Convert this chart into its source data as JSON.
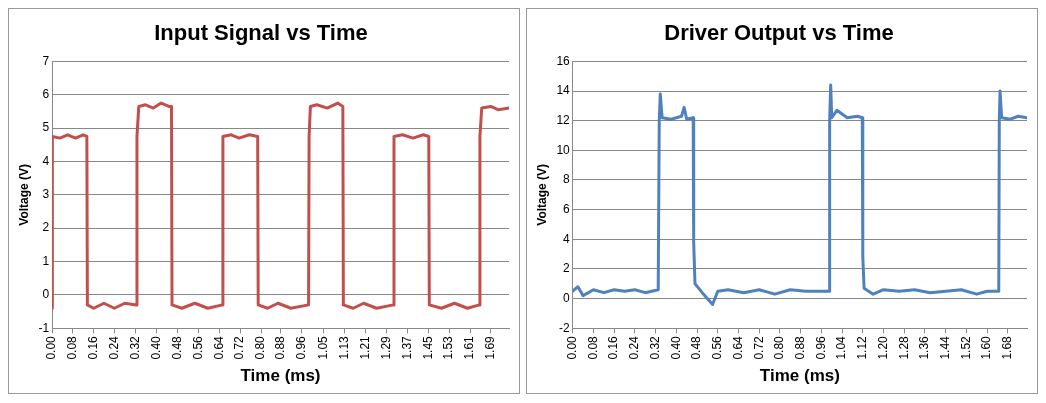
{
  "chart_data": [
    {
      "type": "line",
      "title": "Input Signal vs Time",
      "xlabel": "Time (ms)",
      "ylabel": "Voltage (V)",
      "grid": "y",
      "legend": false,
      "marker": "none",
      "line_style": "solid",
      "xlim": [
        0,
        1.76
      ],
      "ylim": [
        -1,
        7
      ],
      "yticks": [
        -1,
        0,
        1,
        2,
        3,
        4,
        5,
        6,
        7
      ],
      "xticks": [
        {
          "value": 0,
          "label": "0.00"
        },
        {
          "value": 0.0805,
          "label": "0.08"
        },
        {
          "value": 0.161,
          "label": "0.16"
        },
        {
          "value": 0.2415,
          "label": "0.24"
        },
        {
          "value": 0.322,
          "label": "0.32"
        },
        {
          "value": 0.4025,
          "label": "0.40"
        },
        {
          "value": 0.483,
          "label": "0.48"
        },
        {
          "value": 0.5635,
          "label": "0.56"
        },
        {
          "value": 0.644,
          "label": "0.64"
        },
        {
          "value": 0.7245,
          "label": "0.72"
        },
        {
          "value": 0.805,
          "label": "0.80"
        },
        {
          "value": 0.88,
          "label": "0.88"
        },
        {
          "value": 0.96,
          "label": "0.96"
        },
        {
          "value": 1.0465,
          "label": "1.05"
        },
        {
          "value": 1.127,
          "label": "1.13"
        },
        {
          "value": 1.2075,
          "label": "1.21"
        },
        {
          "value": 1.288,
          "label": "1.29"
        },
        {
          "value": 1.3685,
          "label": "1.37"
        },
        {
          "value": 1.449,
          "label": "1.45"
        },
        {
          "value": 1.5295,
          "label": "1.53"
        },
        {
          "value": 1.61,
          "label": "1.61"
        },
        {
          "value": 1.6905,
          "label": "1.69"
        }
      ],
      "series": [
        {
          "color": "#c0504d",
          "x": [
            0,
            0.001,
            0.03,
            0.06,
            0.09,
            0.12,
            0.134,
            0.136,
            0.16,
            0.2,
            0.24,
            0.28,
            0.325,
            0.327,
            0.334,
            0.36,
            0.39,
            0.42,
            0.45,
            0.46,
            0.462,
            0.5,
            0.55,
            0.6,
            0.656,
            0.658,
            0.69,
            0.72,
            0.76,
            0.792,
            0.794,
            0.83,
            0.87,
            0.92,
            0.988,
            0.99,
            0.995,
            1.02,
            1.06,
            1.1,
            1.12,
            1.122,
            1.16,
            1.2,
            1.25,
            1.315,
            1.317,
            1.35,
            1.39,
            1.43,
            1.451,
            1.453,
            1.5,
            1.55,
            1.6,
            1.646,
            1.648,
            1.655,
            1.69,
            1.72,
            1.76
          ],
          "values": [
            -0.4,
            4.75,
            4.7,
            4.8,
            4.7,
            4.8,
            4.75,
            -0.3,
            -0.4,
            -0.25,
            -0.4,
            -0.25,
            -0.3,
            4.75,
            5.65,
            5.7,
            5.6,
            5.75,
            5.65,
            5.65,
            -0.3,
            -0.4,
            -0.25,
            -0.4,
            -0.3,
            4.75,
            4.8,
            4.7,
            4.8,
            4.75,
            -0.3,
            -0.4,
            -0.25,
            -0.4,
            -0.3,
            4.75,
            5.65,
            5.7,
            5.6,
            5.75,
            5.65,
            -0.3,
            -0.4,
            -0.25,
            -0.4,
            -0.3,
            4.75,
            4.8,
            4.7,
            4.8,
            4.75,
            -0.3,
            -0.4,
            -0.25,
            -0.4,
            -0.3,
            4.75,
            5.6,
            5.65,
            5.55,
            5.6
          ]
        }
      ]
    },
    {
      "type": "line",
      "title": "Driver Output vs Time",
      "xlabel": "Time (ms)",
      "ylabel": "Voltage (V)",
      "grid": "y",
      "legend": false,
      "marker": "none",
      "line_style": "solid",
      "xlim": [
        0,
        1.754
      ],
      "ylim": [
        -2,
        16
      ],
      "yticks": [
        -2,
        0,
        2,
        4,
        6,
        8,
        10,
        12,
        14,
        16
      ],
      "xticks": [
        {
          "value": 0,
          "label": "0.00"
        },
        {
          "value": 0.08,
          "label": "0.08"
        },
        {
          "value": 0.16,
          "label": "0.16"
        },
        {
          "value": 0.24,
          "label": "0.24"
        },
        {
          "value": 0.32,
          "label": "0.32"
        },
        {
          "value": 0.4,
          "label": "0.40"
        },
        {
          "value": 0.48,
          "label": "0.48"
        },
        {
          "value": 0.56,
          "label": "0.56"
        },
        {
          "value": 0.64,
          "label": "0.64"
        },
        {
          "value": 0.72,
          "label": "0.72"
        },
        {
          "value": 0.8,
          "label": "0.80"
        },
        {
          "value": 0.88,
          "label": "0.88"
        },
        {
          "value": 0.96,
          "label": "0.96"
        },
        {
          "value": 1.04,
          "label": "1.04"
        },
        {
          "value": 1.12,
          "label": "1.12"
        },
        {
          "value": 1.2,
          "label": "1.20"
        },
        {
          "value": 1.28,
          "label": "1.28"
        },
        {
          "value": 1.36,
          "label": "1.36"
        },
        {
          "value": 1.44,
          "label": "1.44"
        },
        {
          "value": 1.52,
          "label": "1.52"
        },
        {
          "value": 1.6,
          "label": "1.60"
        },
        {
          "value": 1.68,
          "label": "1.68"
        }
      ],
      "series": [
        {
          "color": "#4f81bd",
          "x": [
            0,
            0.02,
            0.04,
            0.08,
            0.12,
            0.16,
            0.2,
            0.24,
            0.28,
            0.33,
            0.334,
            0.338,
            0.345,
            0.38,
            0.42,
            0.43,
            0.44,
            0.465,
            0.467,
            0.472,
            0.5,
            0.54,
            0.56,
            0.6,
            0.66,
            0.72,
            0.78,
            0.84,
            0.9,
            0.99,
            0.992,
            0.996,
            1.0,
            1.02,
            1.06,
            1.1,
            1.118,
            1.12,
            1.125,
            1.16,
            1.2,
            1.26,
            1.32,
            1.38,
            1.44,
            1.5,
            1.56,
            1.6,
            1.645,
            1.647,
            1.65,
            1.656,
            1.69,
            1.72,
            1.754
          ],
          "values": [
            0.5,
            0.8,
            0.2,
            0.6,
            0.4,
            0.6,
            0.5,
            0.6,
            0.4,
            0.6,
            12,
            13.8,
            12.2,
            12.1,
            12.3,
            12.9,
            12.1,
            12.2,
            3.8,
            1,
            0.4,
            -0.4,
            0.5,
            0.6,
            0.4,
            0.6,
            0.3,
            0.6,
            0.5,
            0.5,
            12,
            14.4,
            12.2,
            12.7,
            12.2,
            12.3,
            12.2,
            2.8,
            0.7,
            0.3,
            0.6,
            0.5,
            0.6,
            0.4,
            0.5,
            0.6,
            0.3,
            0.5,
            0.5,
            12,
            14,
            12.2,
            12.1,
            12.3,
            12.2
          ]
        }
      ]
    }
  ]
}
